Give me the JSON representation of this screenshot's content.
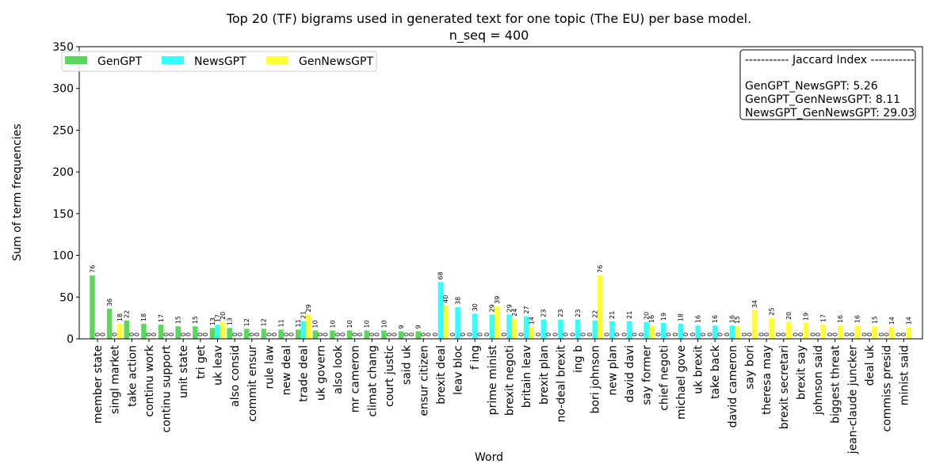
{
  "chart_data": {
    "type": "bar",
    "title": "Top 20 (TF) bigrams used in generated text for one topic (The EU) per base model.",
    "subtitle": "n_seq = 400",
    "xlabel": "Word",
    "ylabel": "Sum of term frequencies",
    "ylim": [
      0,
      350
    ],
    "yticks": [
      0,
      50,
      100,
      150,
      200,
      250,
      300,
      350
    ],
    "grid": false,
    "legend_position": "top-left",
    "categories": [
      "member state",
      "singl market",
      "take action",
      "continu work",
      "continu support",
      "unit state",
      "tri get",
      "uk leav",
      "also consid",
      "commit ensur",
      "rule law",
      "new deal",
      "trade deal",
      "uk govern",
      "also look",
      "mr cameron",
      "climat chang",
      "court justic",
      "said uk",
      "ensur citizen",
      "brexit deal",
      "leav bloc",
      "f ing",
      "prime minist",
      "brexit negoti",
      "britain leav",
      "brexit plan",
      "no-deal brexit",
      "ing b",
      "bori johnson",
      "new plan",
      "david davi",
      "say former",
      "chief negoti",
      "michael gove",
      "uk brexit",
      "take back",
      "david cameron",
      "say bori",
      "theresa may",
      "brexit secretari",
      "brexit say",
      "johnson said",
      "biggest threat",
      "jean-claude juncker",
      "deal uk",
      "commiss presid",
      "minist said"
    ],
    "series": [
      {
        "name": "GenGPT",
        "color": "#5bd85b",
        "values": [
          76,
          36,
          22,
          18,
          17,
          15,
          15,
          13,
          13,
          12,
          12,
          11,
          11,
          10,
          10,
          10,
          10,
          10,
          9,
          9,
          0,
          0,
          0,
          0,
          0,
          0,
          0,
          0,
          0,
          0,
          0,
          0,
          0,
          0,
          0,
          0,
          0,
          0,
          0,
          0,
          0,
          0,
          0,
          0,
          0,
          0,
          0,
          0
        ]
      },
      {
        "name": "NewsGPT",
        "color": "#33ffff",
        "values": [
          0,
          0,
          0,
          0,
          0,
          0,
          0,
          17,
          0,
          0,
          0,
          0,
          21,
          0,
          0,
          0,
          0,
          0,
          0,
          0,
          68,
          38,
          30,
          29,
          29,
          27,
          23,
          23,
          23,
          22,
          21,
          21,
          20,
          19,
          18,
          16,
          16,
          16,
          0,
          0,
          0,
          0,
          0,
          0,
          0,
          0,
          0,
          0
        ]
      },
      {
        "name": "GenNewsGPT",
        "color": "#ffff33",
        "values": [
          0,
          18,
          0,
          0,
          0,
          0,
          0,
          20,
          0,
          0,
          0,
          0,
          29,
          0,
          0,
          0,
          0,
          0,
          0,
          0,
          40,
          0,
          0,
          39,
          24,
          14,
          0,
          0,
          0,
          76,
          0,
          0,
          16,
          0,
          0,
          0,
          0,
          15,
          34,
          25,
          20,
          19,
          17,
          16,
          16,
          15,
          14,
          14
        ]
      }
    ],
    "annotation": {
      "header": "----------- Jaccard Index -----------",
      "lines": [
        "GenGPT_NewsGPT: 5.26",
        "GenGPT_GenNewsGPT: 8.11",
        "NewsGPT_GenNewsGPT: 29.03"
      ]
    }
  }
}
